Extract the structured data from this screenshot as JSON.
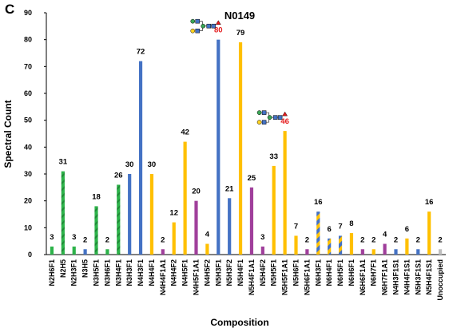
{
  "panel_letter": "C",
  "colors": {
    "green": "#2db34a",
    "blue": "#4472c4",
    "yellow": "#ffc000",
    "purple": "#a03f9b",
    "gray": "#bfbfbf",
    "highlight_label": "#e41a1c"
  },
  "chart_data": {
    "type": "bar",
    "title": "N0149",
    "xlabel": "Composition",
    "ylabel": "Spectral Count",
    "ylim": [
      0,
      90
    ],
    "yticks": [
      0,
      10,
      20,
      30,
      40,
      50,
      60,
      70,
      80,
      90
    ],
    "grid": false,
    "categories": [
      "N2H6F1",
      "N2H5",
      "N2H3F1",
      "N3H5",
      "N3H5F1",
      "N3H6F1",
      "N3H4F1",
      "N3H3F1",
      "N4H3F1",
      "N4H4F1",
      "N4H4F1A1",
      "N4H4F2",
      "N4H5F1",
      "N4H5F1A1",
      "N4H5F2",
      "N5H3F1",
      "N5H3F2",
      "N5H4F1",
      "N5H4F1A1",
      "N5H4F2",
      "N5H5F1",
      "N5H5F1A1",
      "N5H6F1",
      "N5H6F1A1",
      "N6H3F1",
      "N6H4F1",
      "N6H5F1",
      "N6H6F1",
      "N6H6F1A1",
      "N6H7F1",
      "N6H7F1A1",
      "N4H3F1S1",
      "N4H4F1S1",
      "N5H3F1S1",
      "N5H4F1S1",
      "Unoccupied"
    ],
    "values": [
      3,
      31,
      3,
      2,
      18,
      2,
      26,
      30,
      72,
      30,
      2,
      12,
      42,
      20,
      4,
      80,
      21,
      79,
      25,
      3,
      33,
      46,
      7,
      2,
      16,
      6,
      7,
      8,
      2,
      2,
      4,
      2,
      6,
      2,
      16,
      2
    ],
    "bar_colors": [
      "green",
      "green",
      "green",
      "blue",
      "green",
      "green",
      "green",
      "blue",
      "blue",
      "yellow",
      "purple",
      "yellow",
      "yellow",
      "purple",
      "yellow",
      "blue",
      "blue",
      "yellow",
      "purple",
      "purple",
      "yellow",
      "yellow",
      "yellow",
      "purple",
      "blue",
      "blue",
      "blue",
      "yellow",
      "purple",
      "yellow",
      "purple",
      "blue",
      "yellow",
      "blue",
      "yellow",
      "gray"
    ],
    "bar_styles": [
      "solid",
      "striped",
      "solid",
      "solid",
      "striped",
      "solid",
      "striped",
      "solid",
      "solid",
      "solid",
      "solid",
      "solid",
      "solid",
      "solid",
      "solid",
      "solid",
      "solid",
      "solid",
      "solid",
      "solid",
      "solid",
      "solid",
      "solid",
      "solid",
      "striped",
      "striped",
      "striped",
      "solid",
      "solid",
      "solid",
      "solid",
      "solid",
      "solid",
      "solid",
      "solid",
      "solid"
    ],
    "highlighted": [
      "N5H3F1",
      "N5H5F1A1"
    ],
    "glycan_icons": [
      "N5H3F1",
      "N5H5F1A1"
    ]
  }
}
